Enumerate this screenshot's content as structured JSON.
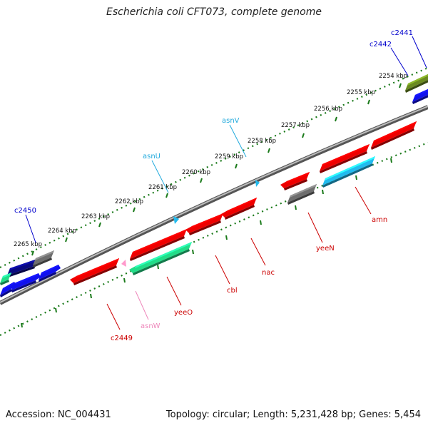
{
  "title": "Escherichia coli CFT073, complete genome",
  "accession": "Accession: NC_004431",
  "summary": "Topology: circular; Length: 5,231,428 bp; Genes: 5,454",
  "colors": {
    "backbone": "#777777",
    "tick": "#1a7a1a",
    "ruler_text": "#111111",
    "label_blue": "#0000cc",
    "label_red": "#cc0000",
    "label_cyan": "#22aadd",
    "label_pink": "#ee88bb",
    "gene_red": "#ee0000",
    "gene_green": "#22dd88",
    "gene_cyan": "#22bbee",
    "gene_navy": "#0a0a80",
    "gene_blue": "#1010ee",
    "gene_gray": "#6e6e6e",
    "gene_olive": "#6a8a20",
    "gene_pink": "#ff99cc"
  },
  "ruler_labels": [
    "2254 kbp",
    "2255 kbp",
    "2256 kbp",
    "2257 kbp",
    "2258 kbp",
    "2259 kbp",
    "2260 kbp",
    "2261 kbp",
    "2262 kbp",
    "2263 kbp",
    "2264 kbp",
    "2265 kbp"
  ],
  "gene_labels": [
    {
      "text": "c2441",
      "color": "blue"
    },
    {
      "text": "c2442",
      "color": "blue"
    },
    {
      "text": "asnV",
      "color": "cyan"
    },
    {
      "text": "asnU",
      "color": "cyan"
    },
    {
      "text": "c2450",
      "color": "blue"
    },
    {
      "text": "amn",
      "color": "red"
    },
    {
      "text": "yeeN",
      "color": "red"
    },
    {
      "text": "nac",
      "color": "red"
    },
    {
      "text": "cbl",
      "color": "red"
    },
    {
      "text": "yeeO",
      "color": "red"
    },
    {
      "text": "asnW",
      "color": "pink"
    },
    {
      "text": "c2449",
      "color": "red"
    }
  ]
}
